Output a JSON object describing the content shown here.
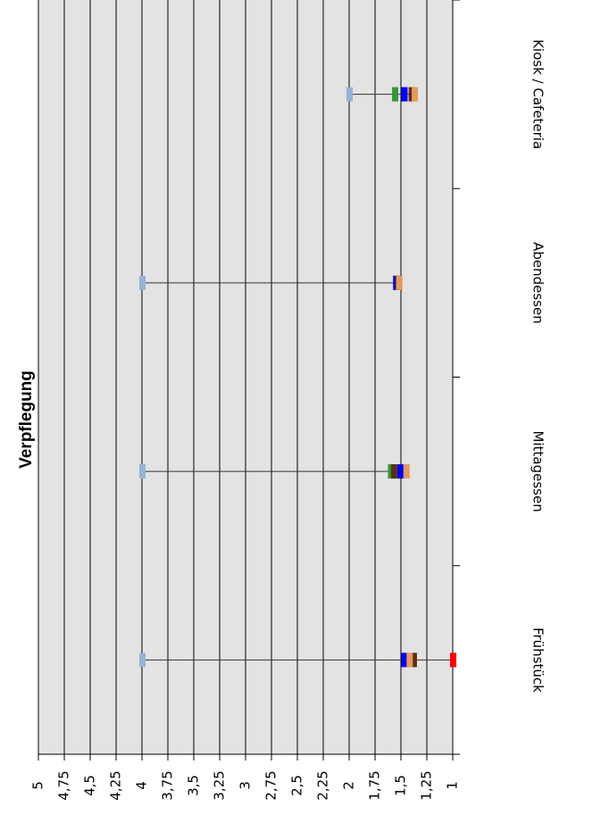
{
  "chart_data": {
    "type": "rangemarker",
    "title": "Verpflegung",
    "categories": [
      "Frühstück",
      "Mittagessen",
      "Abendessen",
      "Kiosk / Cafeteria"
    ],
    "series": [
      {
        "color": "#95b3d7",
        "values": [
          4,
          4,
          4,
          2
        ]
      },
      {
        "color": "#ff0000",
        "values": [
          1,
          null,
          null,
          null
        ]
      },
      {
        "color": "#0000ff",
        "values": [
          1.47,
          1.51,
          1.55,
          1.47
        ]
      },
      {
        "color": "#339933",
        "values": [
          null,
          1.6,
          null,
          1.56
        ]
      },
      {
        "color": "#5c2e0e",
        "values": [
          1.38,
          1.57,
          1.53,
          1.4
        ]
      },
      {
        "color": "#e59a5c",
        "values": [
          1.42,
          1.45,
          1.52,
          1.37
        ]
      }
    ],
    "ylim": [
      1,
      5
    ],
    "yticks": [
      1,
      {
        "value": 1.25,
        "label": "1,25"
      },
      {
        "value": 1.5,
        "label": "1,5"
      },
      {
        "value": 1.75,
        "label": "1,75"
      },
      2,
      {
        "value": 2.25,
        "label": "2,25"
      },
      {
        "value": 2.5,
        "label": "2,5"
      },
      {
        "value": 2.75,
        "label": "2,75"
      },
      3,
      {
        "value": 3.25,
        "label": "3,25"
      },
      {
        "value": 3.5,
        "label": "3,5"
      },
      {
        "value": 3.75,
        "label": "3,75"
      },
      4,
      {
        "value": 4.25,
        "label": "4,25"
      },
      {
        "value": 4.5,
        "label": "4,5"
      },
      {
        "value": 4.75,
        "label": "4,75"
      },
      5
    ],
    "grid": true
  }
}
